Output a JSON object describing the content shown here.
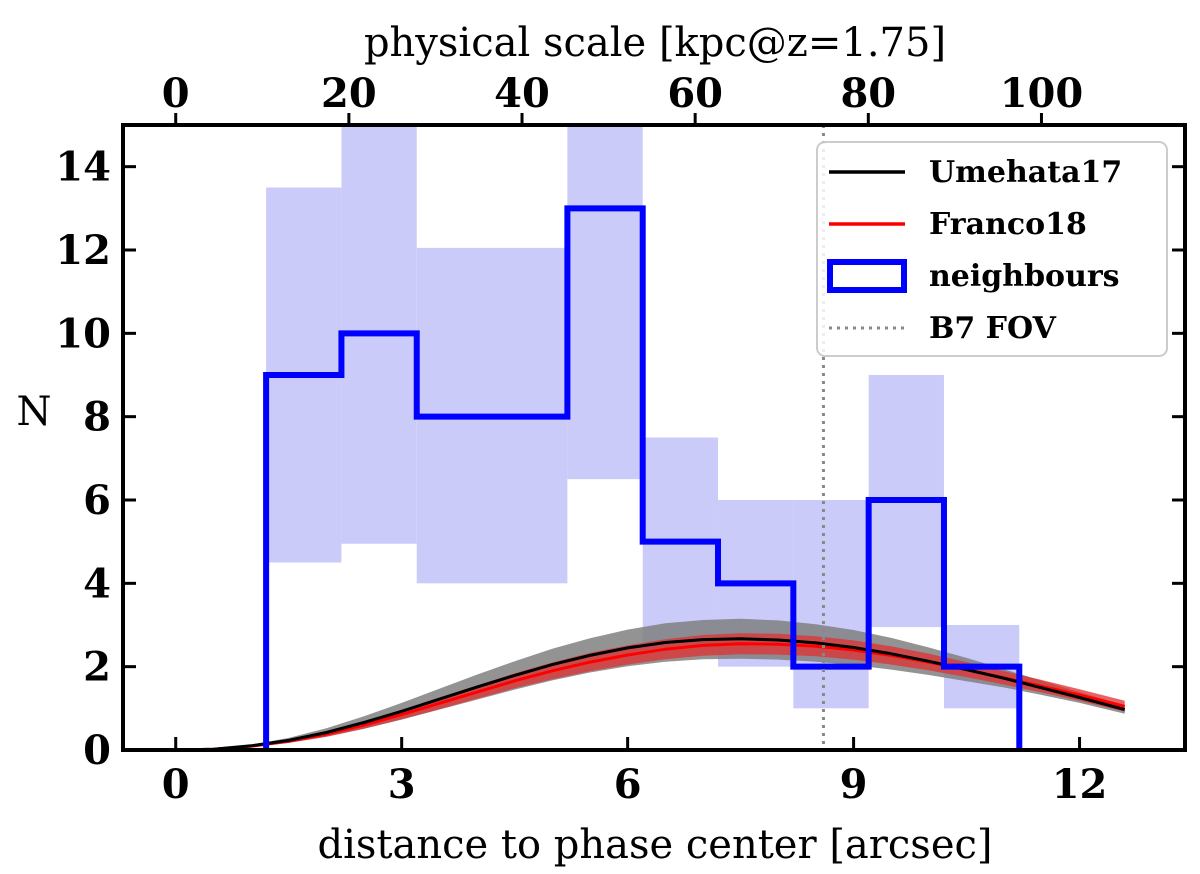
{
  "chart_data": {
    "type": "line",
    "xlabel": "distance to phase center [arcsec]",
    "ylabel": "N",
    "top_xlabel": "physical scale [kpc@z=1.75]",
    "xlim": [
      -0.7,
      13.4
    ],
    "ylim": [
      0,
      15
    ],
    "xticks": [
      0,
      3,
      6,
      9,
      12
    ],
    "yticks": [
      0,
      2,
      4,
      6,
      8,
      10,
      12,
      14
    ],
    "top_ticks": {
      "kpc_per_arcsec": 8.7,
      "values": [
        0,
        20,
        40,
        60,
        80,
        100
      ]
    },
    "fov_line_x": 8.6,
    "legend": {
      "placement": "top-right",
      "entries": [
        {
          "label": "Umehata17",
          "style": "line",
          "color": "#000000"
        },
        {
          "label": "Franco18",
          "style": "line",
          "color": "#ff0000"
        },
        {
          "label": "neighbours",
          "style": "box",
          "color": "#0000ff"
        },
        {
          "label": "B7 FOV",
          "style": "dotted",
          "color": "#888888"
        }
      ]
    },
    "histogram": {
      "name": "neighbours",
      "color": "#0000ff",
      "band_color": "#c8c8fa",
      "bin_edges": [
        1.2,
        2.2,
        3.2,
        5.2,
        6.2,
        7.2,
        8.2,
        9.2,
        10.2,
        11.2
      ],
      "counts": [
        9,
        10,
        8,
        13,
        5,
        4,
        2,
        6,
        2
      ],
      "err_low": [
        4.5,
        4.95,
        4.0,
        6.5,
        2.45,
        2.0,
        1.0,
        2.95,
        1.0
      ],
      "err_high": [
        13.5,
        15.0,
        12.05,
        15.0,
        7.5,
        6.0,
        6.0,
        9.0,
        3.0
      ]
    },
    "series": [
      {
        "name": "Umehata17",
        "color": "#000000",
        "band_color": "#808080",
        "x": [
          0,
          0.5,
          1,
          1.5,
          2,
          2.5,
          3,
          3.5,
          4,
          4.5,
          5,
          5.5,
          6,
          6.5,
          7,
          7.5,
          8,
          8.5,
          9,
          9.5,
          10,
          10.5,
          11,
          11.5,
          12,
          12.6
        ],
        "y": [
          0,
          0.02,
          0.1,
          0.23,
          0.42,
          0.66,
          0.93,
          1.22,
          1.51,
          1.79,
          2.05,
          2.27,
          2.45,
          2.58,
          2.65,
          2.67,
          2.64,
          2.57,
          2.46,
          2.31,
          2.13,
          1.93,
          1.72,
          1.49,
          1.26,
          0.97
        ],
        "band_halfwidth": [
          0,
          0.01,
          0.03,
          0.06,
          0.1,
          0.15,
          0.2,
          0.25,
          0.3,
          0.34,
          0.38,
          0.41,
          0.44,
          0.46,
          0.47,
          0.48,
          0.47,
          0.45,
          0.42,
          0.38,
          0.33,
          0.28,
          0.22,
          0.17,
          0.13,
          0.1
        ]
      },
      {
        "name": "Franco18",
        "color": "#ff0000",
        "band_color": "#e03030",
        "x": [
          0,
          0.5,
          1,
          1.5,
          2,
          2.5,
          3,
          3.5,
          4,
          4.5,
          5,
          5.5,
          6,
          6.5,
          7,
          7.5,
          8,
          8.5,
          9,
          9.5,
          10,
          10.5,
          11,
          11.5,
          12,
          12.6
        ],
        "y": [
          0,
          0.02,
          0.09,
          0.21,
          0.38,
          0.6,
          0.85,
          1.12,
          1.39,
          1.66,
          1.9,
          2.11,
          2.28,
          2.42,
          2.51,
          2.55,
          2.54,
          2.49,
          2.4,
          2.27,
          2.11,
          1.93,
          1.73,
          1.53,
          1.32,
          1.05
        ],
        "band_halfwidth": [
          0,
          0.01,
          0.02,
          0.04,
          0.06,
          0.09,
          0.11,
          0.14,
          0.16,
          0.18,
          0.2,
          0.22,
          0.23,
          0.24,
          0.25,
          0.25,
          0.25,
          0.24,
          0.23,
          0.22,
          0.2,
          0.18,
          0.16,
          0.15,
          0.14,
          0.13
        ]
      }
    ]
  }
}
